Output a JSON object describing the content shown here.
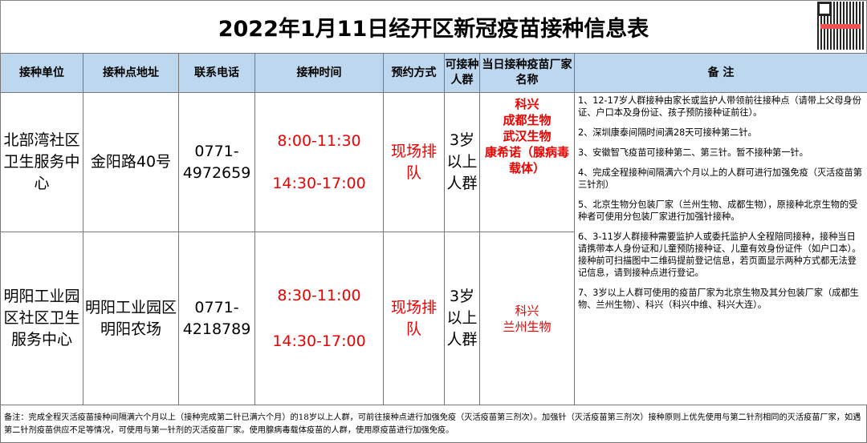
{
  "title": "2022年1月11日经开区新冠疫苗接种信息表",
  "headers": [
    "接种单位",
    "接种点地址",
    "联系电话",
    "接种时间",
    "预约方式",
    "可接种人群",
    "当日接种疫苗厂家名称",
    "备 注"
  ],
  "rows": [
    {
      "unit": "北部湾社区卫生服务中心",
      "address": "金阳路40号",
      "phone": "0771-4972659",
      "time1": "8:00-11:30",
      "time2": "14:30-17:00",
      "method": "现场排队",
      "group": "3岁以上人群",
      "vendors": [
        "科兴",
        "成都生物",
        "武汉生物",
        "康希诺（腺病毒载体）"
      ]
    },
    {
      "unit": "明阳工业园区社区卫生服务中心",
      "address": "明阳工业园区明阳农场",
      "phone": "0771-4218789",
      "time1": "8:30-11:00",
      "time2": "14:30-17:00",
      "method": "现场排队",
      "group": "3岁以上人群",
      "vendors": [
        "科兴",
        "兰州生物"
      ]
    }
  ],
  "notes": [
    "1、12-17岁人群接种由家长或监护人带领前往接种点（请带上父母身份证、户口本及身份证、孩子预防接种证前往）。",
    "2、深圳康泰间隔时间满28天可接种第二针。",
    "3、安徽智飞疫苗可接种第二、第三针。暂不接种第一针。",
    "4、完成全程接种间隔满六个月以上的人群可进行加强免疫（灭活疫苗第三针剂）",
    "5、北京生物分包装厂家（兰州生物、成都生物），原接种北京生物的受种者可使用分包装厂家进行加强针接种。",
    "6、3-11岁人群接种需要监护人或委托监护人全程陪同接种，接种当日请携带本人身份证和儿童预防接种证、儿童有效身份证件（如户口本）。接种前可扫描图中二维码提前登记信息，若页面显示两种方式都无法登记信息，请到接种点进行登记。",
    "7、3岁以上人群可使用的疫苗厂家为北京生物及其分包装厂家（成都生物、兰州生物）、科兴（科兴中维、科兴大连）。"
  ],
  "footer": "备注：完成全程灭活疫苗接种间隔满六个月以上（接种完成第二针已满六个月）的18岁以上人群，可前往接种点进行加强免疫（灭活疫苗第三剂次）。加强针（灭活疫苗第三剂次）接种原则上优先使用与第二针剂相同的灭活疫苗厂家，如遇第二针剂疫苗供应不足等情况，可使用与第一针剂的灭活疫苗厂家。使用腺病毒载体疫苗的人群，使用原疫苗进行加强免疫。",
  "colors": {
    "header_bg": "#bdd7ee",
    "accent_red": "#e00000"
  }
}
